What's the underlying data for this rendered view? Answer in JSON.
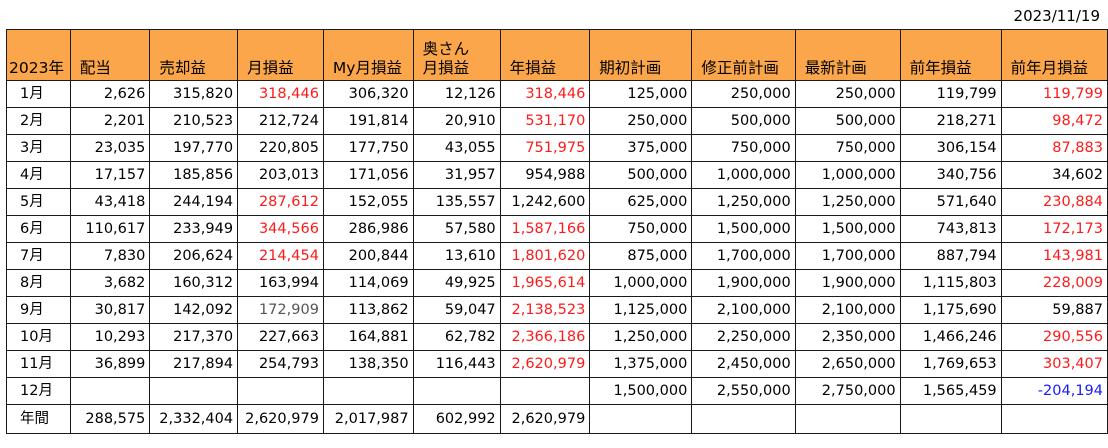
{
  "date": "2023/11/19",
  "colors": {
    "header_bg": "#fba64a",
    "red": "#ff1a1a",
    "blue": "#1a1aff",
    "gray": "#555555"
  },
  "headers": [
    "2023年",
    "配当",
    "売却益",
    "月損益",
    "My月損益",
    "奥さん月損益",
    "年損益",
    "期初計画",
    "修正前計画",
    "最新計画",
    "前年損益",
    "前年月損益"
  ],
  "header_oku_line1": "奥さん",
  "header_oku_line2": "月損益",
  "rows": [
    {
      "label": "1月",
      "cells": [
        "2,626",
        "315,820",
        "318,446",
        "306,320",
        "12,126",
        "318,446",
        "125,000",
        "250,000",
        "250,000",
        "119,799",
        "119,799"
      ]
    },
    {
      "label": "2月",
      "cells": [
        "2,201",
        "210,523",
        "212,724",
        "191,814",
        "20,910",
        "531,170",
        "250,000",
        "500,000",
        "500,000",
        "218,271",
        "98,472"
      ]
    },
    {
      "label": "3月",
      "cells": [
        "23,035",
        "197,770",
        "220,805",
        "177,750",
        "43,055",
        "751,975",
        "375,000",
        "750,000",
        "750,000",
        "306,154",
        "87,883"
      ]
    },
    {
      "label": "4月",
      "cells": [
        "17,157",
        "185,856",
        "203,013",
        "171,056",
        "31,957",
        "954,988",
        "500,000",
        "1,000,000",
        "1,000,000",
        "340,756",
        "34,602"
      ]
    },
    {
      "label": "5月",
      "cells": [
        "43,418",
        "244,194",
        "287,612",
        "152,055",
        "135,557",
        "1,242,600",
        "625,000",
        "1,250,000",
        "1,250,000",
        "571,640",
        "230,884"
      ]
    },
    {
      "label": "6月",
      "cells": [
        "110,617",
        "233,949",
        "344,566",
        "286,986",
        "57,580",
        "1,587,166",
        "750,000",
        "1,500,000",
        "1,500,000",
        "743,813",
        "172,173"
      ]
    },
    {
      "label": "7月",
      "cells": [
        "7,830",
        "206,624",
        "214,454",
        "200,844",
        "13,610",
        "1,801,620",
        "875,000",
        "1,700,000",
        "1,700,000",
        "887,794",
        "143,981"
      ]
    },
    {
      "label": "8月",
      "cells": [
        "3,682",
        "160,312",
        "163,994",
        "114,069",
        "49,925",
        "1,965,614",
        "1,000,000",
        "1,900,000",
        "1,900,000",
        "1,115,803",
        "228,009"
      ]
    },
    {
      "label": "9月",
      "cells": [
        "30,817",
        "142,092",
        "172,909",
        "113,862",
        "59,047",
        "2,138,523",
        "1,125,000",
        "2,100,000",
        "2,100,000",
        "1,175,690",
        "59,887"
      ]
    },
    {
      "label": "10月",
      "cells": [
        "10,293",
        "217,370",
        "227,663",
        "164,881",
        "62,782",
        "2,366,186",
        "1,250,000",
        "2,250,000",
        "2,350,000",
        "1,466,246",
        "290,556"
      ]
    },
    {
      "label": "11月",
      "cells": [
        "36,899",
        "217,894",
        "254,793",
        "138,350",
        "116,443",
        "2,620,979",
        "1,375,000",
        "2,450,000",
        "2,650,000",
        "1,769,653",
        "303,407"
      ]
    },
    {
      "label": "12月",
      "cells": [
        "",
        "",
        "",
        "",
        "",
        "",
        "1,500,000",
        "2,550,000",
        "2,750,000",
        "1,565,459",
        "-204,194"
      ]
    },
    {
      "label": "年間",
      "cells": [
        "288,575",
        "2,332,404",
        "2,620,979",
        "2,017,987",
        "602,992",
        "2,620,979",
        "",
        "",
        "",
        "",
        ""
      ]
    }
  ],
  "cell_colors": [
    [
      "",
      "",
      "red",
      "",
      "",
      "red",
      "",
      "",
      "",
      "",
      "red"
    ],
    [
      "",
      "",
      "",
      "",
      "",
      "red",
      "",
      "",
      "",
      "",
      "red"
    ],
    [
      "",
      "",
      "",
      "",
      "",
      "red",
      "",
      "",
      "",
      "",
      "red"
    ],
    [
      "",
      "",
      "",
      "",
      "",
      "",
      "",
      "",
      "",
      "",
      ""
    ],
    [
      "",
      "",
      "red",
      "",
      "",
      "",
      "",
      "",
      "",
      "",
      "red"
    ],
    [
      "",
      "",
      "red",
      "",
      "",
      "red",
      "",
      "",
      "",
      "",
      "red"
    ],
    [
      "",
      "",
      "red",
      "",
      "",
      "red",
      "",
      "",
      "",
      "",
      "red"
    ],
    [
      "",
      "",
      "",
      "",
      "",
      "red",
      "",
      "",
      "",
      "",
      "red"
    ],
    [
      "",
      "",
      "gray",
      "",
      "",
      "red",
      "",
      "",
      "",
      "",
      ""
    ],
    [
      "",
      "",
      "",
      "",
      "",
      "red",
      "",
      "",
      "",
      "",
      "red"
    ],
    [
      "",
      "",
      "",
      "",
      "",
      "red",
      "",
      "",
      "",
      "",
      "red"
    ],
    [
      "",
      "",
      "",
      "",
      "",
      "",
      "",
      "",
      "",
      "",
      "blue"
    ],
    [
      "",
      "",
      "",
      "",
      "",
      "",
      "",
      "",
      "",
      "",
      ""
    ]
  ]
}
